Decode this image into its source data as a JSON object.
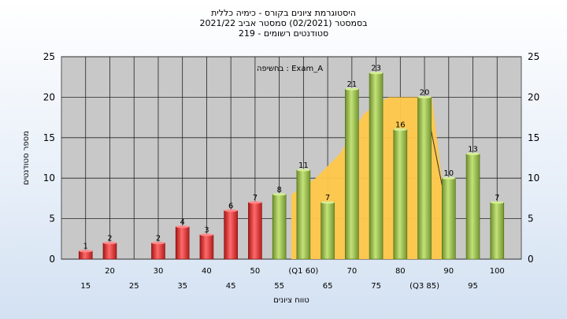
{
  "chart_data": {
    "type": "bar",
    "title_lines": [
      "היסטוגרמת ציונים בקורס - כימיה כללית",
      "בסמסטר  (02/2021)  סמסטר אביב 2021/22",
      "סטודנטים רשומים - 219"
    ],
    "ylabel": "מספר סטודנטים",
    "xlabel": "טווח ציונים",
    "legend_text": "בחשיפה : Exam_A",
    "ylim": [
      0,
      25
    ],
    "yticks": [
      0,
      5,
      10,
      15,
      20,
      25
    ],
    "categories": [
      15,
      20,
      25,
      30,
      35,
      40,
      45,
      50,
      55,
      60,
      65,
      70,
      75,
      80,
      85,
      90,
      95,
      100
    ],
    "category_labels": [
      "15",
      "20",
      "25",
      "30",
      "35",
      "40",
      "45",
      "50",
      "55",
      "(Q1 60)",
      "65",
      "70",
      "75",
      "80",
      "(Q3 85)",
      "90",
      "95",
      "100"
    ],
    "series": [
      {
        "values": [
          1,
          2,
          0,
          2,
          4,
          3,
          6,
          7,
          8,
          11,
          7,
          21,
          23,
          16,
          20,
          10,
          13,
          7
        ],
        "colors": [
          "red",
          "red",
          "red",
          "red",
          "red",
          "red",
          "red",
          "red",
          "green",
          "green",
          "green",
          "green",
          "green",
          "green",
          "green",
          "green",
          "green",
          "green"
        ]
      }
    ],
    "area": {
      "x": [
        57.5,
        62.5,
        67.5,
        72.5,
        77.5,
        82.5,
        85,
        86.5,
        89
      ],
      "y": [
        8,
        10,
        13,
        18,
        20,
        20,
        20,
        20,
        8
      ]
    },
    "colors": {
      "red": "#e33a3a",
      "green": "#9dc04a",
      "area": "#ffc84a",
      "plot_bg": "#c8c8c8"
    }
  }
}
